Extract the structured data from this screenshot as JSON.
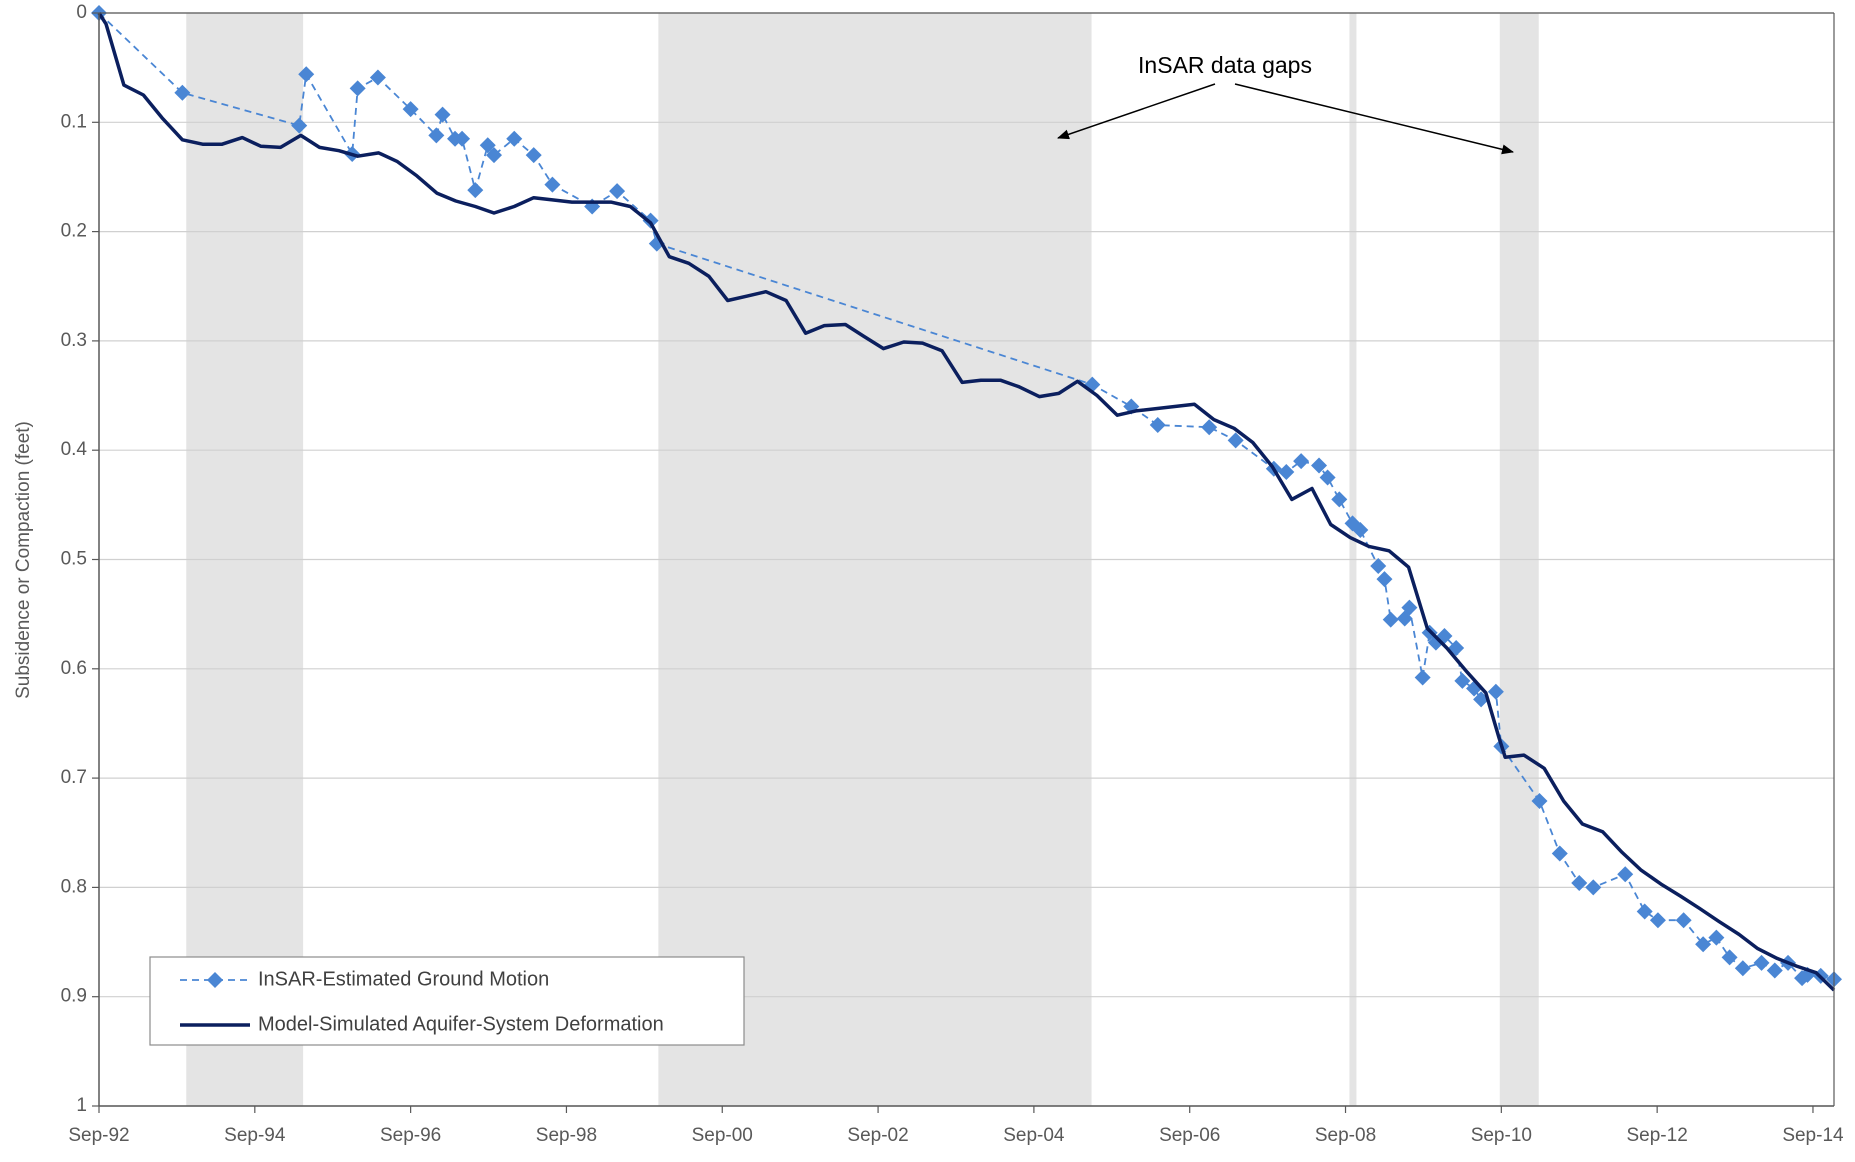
{
  "chart_data": {
    "type": "line",
    "y_label": "Subsidence or Compaction  (feet)",
    "annotation": "InSAR data gaps",
    "xlim": [
      1992.67,
      2014.94
    ],
    "ylim": [
      0,
      1
    ],
    "y_inverted": true,
    "grid": true,
    "legend_position": "lower left",
    "xticks": [
      {
        "value": 1992.67,
        "label": "Sep-92"
      },
      {
        "value": 1994.67,
        "label": "Sep-94"
      },
      {
        "value": 1996.67,
        "label": "Sep-96"
      },
      {
        "value": 1998.67,
        "label": "Sep-98"
      },
      {
        "value": 2000.67,
        "label": "Sep-00"
      },
      {
        "value": 2002.67,
        "label": "Sep-02"
      },
      {
        "value": 2004.67,
        "label": "Sep-04"
      },
      {
        "value": 2006.67,
        "label": "Sep-06"
      },
      {
        "value": 2008.67,
        "label": "Sep-08"
      },
      {
        "value": 2010.67,
        "label": "Sep-10"
      },
      {
        "value": 2012.67,
        "label": "Sep-12"
      },
      {
        "value": 2014.67,
        "label": "Sep-14"
      }
    ],
    "yticks": [
      0,
      0.1,
      0.2,
      0.3,
      0.4,
      0.5,
      0.6,
      0.7,
      0.8,
      0.9,
      1
    ],
    "shaded_regions": [
      [
        1993.79,
        1995.29
      ],
      [
        1999.85,
        2005.41
      ],
      [
        2008.72,
        2008.81
      ],
      [
        2010.65,
        2011.15
      ]
    ],
    "shade_color": "#e4e4e4",
    "series": [
      {
        "name": "InSAR-Estimated Ground Motion",
        "color": "#4a86d4",
        "line_style": "dashed",
        "marker": "diamond",
        "x": [
          1992.67,
          1993.74,
          1995.24,
          1995.33,
          1995.92,
          1995.99,
          1996.25,
          1996.67,
          1997.0,
          1997.08,
          1997.24,
          1997.33,
          1997.5,
          1997.66,
          1997.74,
          1998.0,
          1998.25,
          1998.49,
          1999.0,
          1999.32,
          1999.75,
          1999.83,
          2005.42,
          2005.92,
          2006.26,
          2006.92,
          2007.26,
          2007.75,
          2007.91,
          2008.1,
          2008.33,
          2008.44,
          2008.59,
          2008.76,
          2008.86,
          2009.09,
          2009.17,
          2009.25,
          2009.43,
          2009.49,
          2009.66,
          2009.75,
          2009.83,
          2009.94,
          2010.09,
          2010.17,
          2010.32,
          2010.41,
          2010.6,
          2010.67,
          2011.16,
          2011.42,
          2011.67,
          2011.85,
          2012.26,
          2012.51,
          2012.68,
          2013.01,
          2013.26,
          2013.43,
          2013.6,
          2013.77,
          2014.01,
          2014.18,
          2014.35,
          2014.53,
          2014.6,
          2014.77,
          2014.94
        ],
        "values": [
          0,
          0.073,
          0.103,
          0.056,
          0.129,
          0.069,
          0.059,
          0.088,
          0.112,
          0.093,
          0.115,
          0.115,
          0.162,
          0.121,
          0.13,
          0.115,
          0.13,
          0.157,
          0.177,
          0.163,
          0.19,
          0.211,
          0.34,
          0.36,
          0.377,
          0.379,
          0.391,
          0.417,
          0.42,
          0.41,
          0.414,
          0.425,
          0.445,
          0.467,
          0.473,
          0.506,
          0.518,
          0.555,
          0.554,
          0.544,
          0.608,
          0.567,
          0.576,
          0.57,
          0.581,
          0.611,
          0.618,
          0.628,
          0.621,
          0.671,
          0.721,
          0.769,
          0.796,
          0.8,
          0.788,
          0.822,
          0.83,
          0.83,
          0.852,
          0.846,
          0.864,
          0.874,
          0.869,
          0.876,
          0.869,
          0.883,
          0.88,
          0.881,
          0.884
        ]
      },
      {
        "name": "Model-Simulated Aquifer-System Deformation",
        "color": "#0b1f5e",
        "line_style": "solid",
        "marker": "none",
        "x": [
          1992.67,
          1992.76,
          1992.99,
          1993.24,
          1993.48,
          1993.74,
          1994.0,
          1994.25,
          1994.51,
          1994.75,
          1995.0,
          1995.26,
          1995.5,
          1995.75,
          1995.99,
          1996.26,
          1996.5,
          1996.75,
          1997.01,
          1997.25,
          1997.5,
          1997.74,
          1998.0,
          1998.25,
          1998.49,
          1998.74,
          1999.0,
          1999.24,
          1999.49,
          1999.75,
          1999.99,
          2000.24,
          2000.5,
          2000.74,
          2000.99,
          2001.23,
          2001.49,
          2001.74,
          2001.98,
          2002.25,
          2002.49,
          2002.74,
          2003.0,
          2003.24,
          2003.49,
          2003.75,
          2003.99,
          2004.24,
          2004.48,
          2004.74,
          2004.99,
          2005.23,
          2005.48,
          2005.74,
          2005.98,
          2006.73,
          2006.98,
          2007.24,
          2007.48,
          2007.73,
          2007.98,
          2008.24,
          2008.48,
          2008.73,
          2008.97,
          2009.23,
          2009.48,
          2009.72,
          2009.97,
          2010.23,
          2010.47,
          2010.64,
          2010.72,
          2010.96,
          2011.22,
          2011.47,
          2011.71,
          2011.97,
          2012.22,
          2012.46,
          2012.72,
          2012.97,
          2013.21,
          2013.46,
          2013.72,
          2013.96,
          2014.21,
          2014.46,
          2014.71,
          2014.94
        ],
        "values": [
          0,
          0.01,
          0.066,
          0.075,
          0.096,
          0.116,
          0.12,
          0.12,
          0.114,
          0.122,
          0.123,
          0.112,
          0.123,
          0.126,
          0.131,
          0.128,
          0.136,
          0.149,
          0.165,
          0.172,
          0.177,
          0.183,
          0.177,
          0.169,
          0.171,
          0.173,
          0.173,
          0.173,
          0.177,
          0.192,
          0.223,
          0.229,
          0.241,
          0.263,
          0.259,
          0.255,
          0.263,
          0.293,
          0.286,
          0.285,
          0.296,
          0.307,
          0.301,
          0.302,
          0.309,
          0.338,
          0.336,
          0.336,
          0.342,
          0.351,
          0.348,
          0.337,
          0.35,
          0.368,
          0.364,
          0.358,
          0.372,
          0.38,
          0.393,
          0.415,
          0.445,
          0.435,
          0.468,
          0.48,
          0.488,
          0.492,
          0.507,
          0.563,
          0.581,
          0.603,
          0.622,
          0.663,
          0.681,
          0.679,
          0.691,
          0.721,
          0.742,
          0.749,
          0.768,
          0.784,
          0.797,
          0.808,
          0.819,
          0.831,
          0.843,
          0.856,
          0.865,
          0.872,
          0.878,
          0.894
        ]
      }
    ]
  }
}
